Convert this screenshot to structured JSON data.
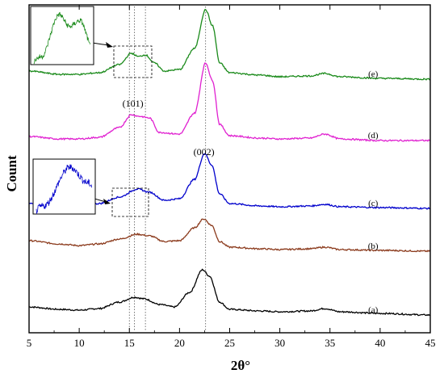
{
  "chart_data": {
    "type": "line",
    "title": "",
    "xlabel": "2θ°",
    "ylabel": "Count",
    "xlim": [
      5,
      45
    ],
    "x_ticks": [
      5,
      10,
      15,
      20,
      25,
      30,
      35,
      40,
      45
    ],
    "y_tick_labels": false,
    "grid": false,
    "legend": "none",
    "vertical_reference_lines": [
      15.0,
      15.5,
      16.6,
      22.6
    ],
    "peak_annotations": [
      {
        "label": "(101)",
        "x": 16.0
      },
      {
        "label": "(002)",
        "x": 22.6
      }
    ],
    "series": [
      {
        "name": "(a)",
        "color": "#000000",
        "offset": 0,
        "points": [
          [
            5,
            12
          ],
          [
            8,
            9
          ],
          [
            10,
            8
          ],
          [
            12,
            10
          ],
          [
            14,
            18
          ],
          [
            15.5,
            24
          ],
          [
            16.5,
            22
          ],
          [
            18,
            15
          ],
          [
            19.5,
            12
          ],
          [
            21,
            30
          ],
          [
            22.3,
            58
          ],
          [
            23,
            50
          ],
          [
            24,
            18
          ],
          [
            25,
            9
          ],
          [
            28,
            7
          ],
          [
            30,
            6
          ],
          [
            33,
            7
          ],
          [
            34.5,
            10
          ],
          [
            36,
            6
          ],
          [
            40,
            4
          ],
          [
            45,
            2
          ]
        ]
      },
      {
        "name": "(b)",
        "color": "#8b3a1c",
        "offset": 80,
        "points": [
          [
            5,
            16
          ],
          [
            8,
            12
          ],
          [
            10,
            10
          ],
          [
            12,
            12
          ],
          [
            14,
            18
          ],
          [
            15.8,
            24
          ],
          [
            17,
            22
          ],
          [
            18.5,
            15
          ],
          [
            20,
            16
          ],
          [
            21.5,
            32
          ],
          [
            22.4,
            43
          ],
          [
            23.2,
            35
          ],
          [
            24,
            15
          ],
          [
            25,
            8
          ],
          [
            28,
            6
          ],
          [
            30,
            5
          ],
          [
            33,
            6
          ],
          [
            34.5,
            8
          ],
          [
            36,
            5
          ],
          [
            40,
            4
          ],
          [
            45,
            3
          ]
        ]
      },
      {
        "name": "(c)",
        "color": "#0000cc",
        "offset": 130,
        "points": [
          [
            5,
            10
          ],
          [
            8,
            8
          ],
          [
            10,
            8
          ],
          [
            12,
            10
          ],
          [
            14,
            18
          ],
          [
            15.8,
            28
          ],
          [
            17,
            24
          ],
          [
            18.5,
            14
          ],
          [
            20,
            16
          ],
          [
            21.5,
            40
          ],
          [
            22.5,
            72
          ],
          [
            23.2,
            58
          ],
          [
            24,
            22
          ],
          [
            25,
            10
          ],
          [
            28,
            7
          ],
          [
            30,
            6
          ],
          [
            33,
            7
          ],
          [
            34.5,
            9
          ],
          [
            36,
            6
          ],
          [
            40,
            5
          ],
          [
            45,
            4
          ]
        ]
      },
      {
        "name": "(d)",
        "color": "#e020d0",
        "offset": 210,
        "points": [
          [
            5,
            11
          ],
          [
            8,
            8
          ],
          [
            10,
            8
          ],
          [
            12,
            10
          ],
          [
            14,
            22
          ],
          [
            15.2,
            38
          ],
          [
            16,
            36
          ],
          [
            17,
            34
          ],
          [
            18,
            16
          ],
          [
            20,
            14
          ],
          [
            21.5,
            40
          ],
          [
            22.6,
            102
          ],
          [
            23.3,
            80
          ],
          [
            24,
            26
          ],
          [
            25,
            12
          ],
          [
            28,
            9
          ],
          [
            30,
            8
          ],
          [
            33,
            9
          ],
          [
            34.5,
            14
          ],
          [
            36,
            8
          ],
          [
            40,
            6
          ],
          [
            45,
            6
          ]
        ]
      },
      {
        "name": "(e)",
        "color": "#1a8a1a",
        "offset": 290,
        "points": [
          [
            5,
            12
          ],
          [
            8,
            8
          ],
          [
            10,
            8
          ],
          [
            12,
            10
          ],
          [
            14,
            20
          ],
          [
            15.2,
            34
          ],
          [
            15.9,
            30
          ],
          [
            16.6,
            32
          ],
          [
            17.5,
            22
          ],
          [
            18.5,
            12
          ],
          [
            20,
            14
          ],
          [
            21.5,
            40
          ],
          [
            22.6,
            88
          ],
          [
            23.3,
            68
          ],
          [
            24,
            22
          ],
          [
            25,
            10
          ],
          [
            28,
            7
          ],
          [
            30,
            5
          ],
          [
            33,
            6
          ],
          [
            34.5,
            9
          ],
          [
            36,
            5
          ],
          [
            40,
            3
          ],
          [
            45,
            2
          ]
        ]
      }
    ],
    "insets": [
      {
        "attached_to": "(e)",
        "x_range": [
          13.5,
          17.3
        ]
      },
      {
        "attached_to": "(c)",
        "x_range": [
          13.5,
          17.3
        ]
      }
    ]
  }
}
